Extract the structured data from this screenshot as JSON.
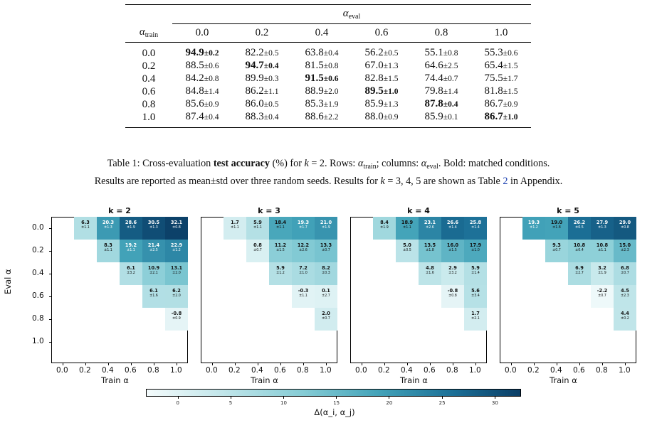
{
  "table": {
    "eval_header": "α",
    "eval_sub": "eval",
    "train_header": "α",
    "train_sub": "train",
    "columns": [
      "0.0",
      "0.2",
      "0.4",
      "0.6",
      "0.8",
      "1.0"
    ],
    "rows": [
      {
        "label": "0.0",
        "cells": [
          {
            "m": "94.9",
            "s": "±0.2",
            "bold": true
          },
          {
            "m": "82.2",
            "s": "±0.5"
          },
          {
            "m": "63.8",
            "s": "±0.4"
          },
          {
            "m": "56.2",
            "s": "±0.5"
          },
          {
            "m": "55.1",
            "s": "±0.8"
          },
          {
            "m": "55.3",
            "s": "±0.6"
          }
        ]
      },
      {
        "label": "0.2",
        "cells": [
          {
            "m": "88.5",
            "s": "±0.6"
          },
          {
            "m": "94.7",
            "s": "±0.4",
            "bold": true
          },
          {
            "m": "81.5",
            "s": "±0.8"
          },
          {
            "m": "67.0",
            "s": "±1.3"
          },
          {
            "m": "64.6",
            "s": "±2.5"
          },
          {
            "m": "65.4",
            "s": "±1.5"
          }
        ]
      },
      {
        "label": "0.4",
        "cells": [
          {
            "m": "84.2",
            "s": "±0.8"
          },
          {
            "m": "89.9",
            "s": "±0.3"
          },
          {
            "m": "91.5",
            "s": "±0.6",
            "bold": true
          },
          {
            "m": "82.8",
            "s": "±1.5"
          },
          {
            "m": "74.4",
            "s": "±0.7"
          },
          {
            "m": "75.5",
            "s": "±1.7"
          }
        ]
      },
      {
        "label": "0.6",
        "cells": [
          {
            "m": "84.8",
            "s": "±1.4"
          },
          {
            "m": "86.2",
            "s": "±1.1"
          },
          {
            "m": "88.9",
            "s": "±2.0"
          },
          {
            "m": "89.5",
            "s": "±1.0",
            "bold": true
          },
          {
            "m": "79.8",
            "s": "±1.4"
          },
          {
            "m": "81.8",
            "s": "±1.5"
          }
        ]
      },
      {
        "label": "0.8",
        "cells": [
          {
            "m": "85.6",
            "s": "±0.9"
          },
          {
            "m": "86.0",
            "s": "±0.5"
          },
          {
            "m": "85.3",
            "s": "±1.9"
          },
          {
            "m": "85.9",
            "s": "±1.3"
          },
          {
            "m": "87.8",
            "s": "±0.4",
            "bold": true
          },
          {
            "m": "86.7",
            "s": "±0.9"
          }
        ]
      },
      {
        "label": "1.0",
        "cells": [
          {
            "m": "87.4",
            "s": "±0.4"
          },
          {
            "m": "88.3",
            "s": "±0.4"
          },
          {
            "m": "88.6",
            "s": "±2.2"
          },
          {
            "m": "88.0",
            "s": "±0.9"
          },
          {
            "m": "85.9",
            "s": "±0.1"
          },
          {
            "m": "86.7",
            "s": "±1.0",
            "bold": true
          }
        ]
      }
    ]
  },
  "caption": {
    "p1": "Table 1: Cross-evaluation ",
    "bold": "test accuracy",
    "p2": " (%) for ",
    "k_var": "k",
    "p3": " = 2. Rows: ",
    "alpha": "α",
    "train_sub": "train",
    "p4": "; columns: ",
    "eval_sub": "eval",
    "p5": ". Bold: matched conditions.",
    "line2a": "Results are reported as mean±std over three random seeds. Results for ",
    "line2b": " = 3, 4, 5 are shown as Table ",
    "ref": "2",
    "line2c": " in Appendix."
  },
  "chart_data": {
    "type": "heatmap",
    "xlabel": "Train α",
    "ylabel": "Eval α",
    "x_ticks": [
      "0.0",
      "0.2",
      "0.4",
      "0.6",
      "0.8",
      "1.0"
    ],
    "y_ticks": [
      "0.0",
      "0.2",
      "0.4",
      "0.6",
      "0.8",
      "1.0"
    ],
    "colorbar": {
      "label": "Δ(α_i, α_j)",
      "ticks": [
        "0",
        "5",
        "10",
        "15",
        "20",
        "25",
        "30"
      ],
      "range": [
        -3,
        32.5
      ]
    },
    "panels": [
      {
        "title": "k = 2",
        "cells": [
          {
            "eval": "0.0",
            "train": "0.2",
            "mean": 6.3,
            "std": "±1.1"
          },
          {
            "eval": "0.0",
            "train": "0.4",
            "mean": 20.3,
            "std": "±1.3"
          },
          {
            "eval": "0.0",
            "train": "0.6",
            "mean": 28.6,
            "std": "±1.9"
          },
          {
            "eval": "0.0",
            "train": "0.8",
            "mean": 30.5,
            "std": "±1.3"
          },
          {
            "eval": "0.0",
            "train": "1.0",
            "mean": 32.1,
            "std": "±0.8"
          },
          {
            "eval": "0.2",
            "train": "0.4",
            "mean": 8.3,
            "std": "±1.1"
          },
          {
            "eval": "0.2",
            "train": "0.6",
            "mean": 19.2,
            "std": "±1.1"
          },
          {
            "eval": "0.2",
            "train": "0.8",
            "mean": 21.4,
            "std": "±2.5"
          },
          {
            "eval": "0.2",
            "train": "1.0",
            "mean": 22.9,
            "std": "±1.2"
          },
          {
            "eval": "0.4",
            "train": "0.6",
            "mean": 6.1,
            "std": "±3.2"
          },
          {
            "eval": "0.4",
            "train": "0.8",
            "mean": 10.9,
            "std": "±2.1"
          },
          {
            "eval": "0.4",
            "train": "1.0",
            "mean": 13.1,
            "std": "±2.0"
          },
          {
            "eval": "0.6",
            "train": "0.8",
            "mean": 6.1,
            "std": "±1.6"
          },
          {
            "eval": "0.6",
            "train": "1.0",
            "mean": 6.2,
            "std": "±2.0"
          },
          {
            "eval": "0.8",
            "train": "1.0",
            "mean": -0.8,
            "std": "±0.9"
          }
        ]
      },
      {
        "title": "k = 3",
        "cells": [
          {
            "eval": "0.0",
            "train": "0.2",
            "mean": 1.7,
            "std": "±1.1"
          },
          {
            "eval": "0.0",
            "train": "0.4",
            "mean": 5.9,
            "std": "±1.1"
          },
          {
            "eval": "0.0",
            "train": "0.6",
            "mean": 18.4,
            "std": "±1.1"
          },
          {
            "eval": "0.0",
            "train": "0.8",
            "mean": 19.3,
            "std": "±1.7"
          },
          {
            "eval": "0.0",
            "train": "1.0",
            "mean": 21.0,
            "std": "±1.9"
          },
          {
            "eval": "0.2",
            "train": "0.4",
            "mean": 0.8,
            "std": "±0.7"
          },
          {
            "eval": "0.2",
            "train": "0.6",
            "mean": 11.2,
            "std": "±1.5"
          },
          {
            "eval": "0.2",
            "train": "0.8",
            "mean": 12.2,
            "std": "±2.6"
          },
          {
            "eval": "0.2",
            "train": "1.0",
            "mean": 13.3,
            "std": "±0.7"
          },
          {
            "eval": "0.4",
            "train": "0.6",
            "mean": 5.9,
            "std": "±1.2"
          },
          {
            "eval": "0.4",
            "train": "0.8",
            "mean": 7.2,
            "std": "±1.0"
          },
          {
            "eval": "0.4",
            "train": "1.0",
            "mean": 8.2,
            "std": "±0.3"
          },
          {
            "eval": "0.6",
            "train": "0.8",
            "mean": -0.3,
            "std": "±1.1"
          },
          {
            "eval": "0.6",
            "train": "1.0",
            "mean": 0.1,
            "std": "±2.7"
          },
          {
            "eval": "0.8",
            "train": "1.0",
            "mean": 2.0,
            "std": "±0.7"
          }
        ]
      },
      {
        "title": "k = 4",
        "cells": [
          {
            "eval": "0.0",
            "train": "0.2",
            "mean": 8.4,
            "std": "±1.9"
          },
          {
            "eval": "0.0",
            "train": "0.4",
            "mean": 18.9,
            "std": "±1.1"
          },
          {
            "eval": "0.0",
            "train": "0.6",
            "mean": 23.1,
            "std": "±2.6"
          },
          {
            "eval": "0.0",
            "train": "0.8",
            "mean": 26.6,
            "std": "±1.4"
          },
          {
            "eval": "0.0",
            "train": "1.0",
            "mean": 25.8,
            "std": "±1.4"
          },
          {
            "eval": "0.2",
            "train": "0.4",
            "mean": 5.0,
            "std": "±0.5"
          },
          {
            "eval": "0.2",
            "train": "0.6",
            "mean": 13.5,
            "std": "±1.8"
          },
          {
            "eval": "0.2",
            "train": "0.8",
            "mean": 16.0,
            "std": "±1.5"
          },
          {
            "eval": "0.2",
            "train": "1.0",
            "mean": 17.9,
            "std": "±1.0"
          },
          {
            "eval": "0.4",
            "train": "0.6",
            "mean": 4.8,
            "std": "±1.6"
          },
          {
            "eval": "0.4",
            "train": "0.8",
            "mean": 2.9,
            "std": "±3.2"
          },
          {
            "eval": "0.4",
            "train": "1.0",
            "mean": 5.9,
            "std": "±1.4"
          },
          {
            "eval": "0.6",
            "train": "0.8",
            "mean": -0.8,
            "std": "±0.8"
          },
          {
            "eval": "0.6",
            "train": "1.0",
            "mean": 5.6,
            "std": "±3.4"
          },
          {
            "eval": "0.8",
            "train": "1.0",
            "mean": 1.7,
            "std": "±2.1"
          }
        ]
      },
      {
        "title": "k = 5",
        "cells": [
          {
            "eval": "0.0",
            "train": "0.2",
            "mean": 19.3,
            "std": "±1.2"
          },
          {
            "eval": "0.0",
            "train": "0.4",
            "mean": 19.0,
            "std": "±1.8"
          },
          {
            "eval": "0.0",
            "train": "0.6",
            "mean": 26.2,
            "std": "±0.5"
          },
          {
            "eval": "0.0",
            "train": "0.8",
            "mean": 27.9,
            "std": "±1.3"
          },
          {
            "eval": "0.0",
            "train": "1.0",
            "mean": 29.0,
            "std": "±0.8"
          },
          {
            "eval": "0.2",
            "train": "0.4",
            "mean": 9.3,
            "std": "±0.7"
          },
          {
            "eval": "0.2",
            "train": "0.6",
            "mean": 10.8,
            "std": "±0.4"
          },
          {
            "eval": "0.2",
            "train": "0.8",
            "mean": 10.8,
            "std": "±1.1"
          },
          {
            "eval": "0.2",
            "train": "1.0",
            "mean": 15.0,
            "std": "±2.3"
          },
          {
            "eval": "0.4",
            "train": "0.6",
            "mean": 6.9,
            "std": "±2.7"
          },
          {
            "eval": "0.4",
            "train": "0.8",
            "mean": 3.2,
            "std": "±1.9"
          },
          {
            "eval": "0.4",
            "train": "1.0",
            "mean": 6.8,
            "std": "±0.7"
          },
          {
            "eval": "0.6",
            "train": "0.8",
            "mean": -2.2,
            "std": "±0.7"
          },
          {
            "eval": "0.6",
            "train": "1.0",
            "mean": 4.5,
            "std": "±2.3"
          },
          {
            "eval": "0.8",
            "train": "1.0",
            "mean": 4.4,
            "std": "±0.2"
          }
        ]
      }
    ]
  }
}
